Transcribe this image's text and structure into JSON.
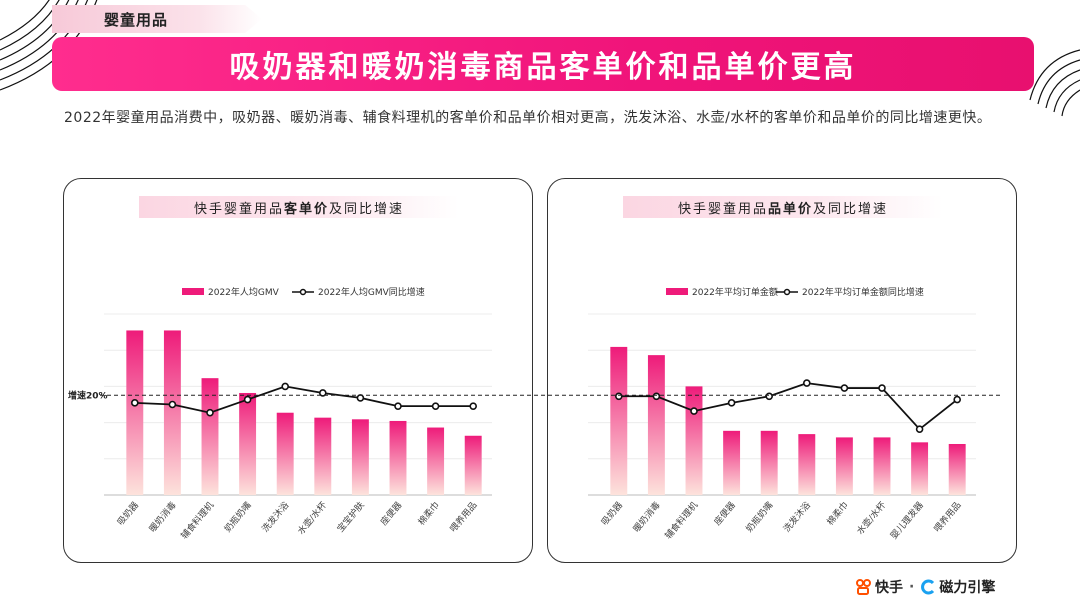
{
  "header": {
    "category": "婴童用品",
    "title": "吸奶器和暖奶消毒商品客单价和品单价更高",
    "summary": "2022年婴童用品消费中，吸奶器、暖奶消毒、辅食料理机的客单价和品单价相对更高，洗发沐浴、水壶/水杯的客单价和品单价的同比增速更快。"
  },
  "colors": {
    "accent": "#ee1b7a",
    "bar_top": "#ee1b7a",
    "bar_bottom": "#fde3dc",
    "line": "#111111"
  },
  "chart_data": [
    {
      "type": "bar",
      "title_pre": "快手婴童用品",
      "title_bold": "客单价",
      "title_post": "及同比增速",
      "categories": [
        "吸奶器",
        "暖奶消毒",
        "辅食料理机",
        "奶瓶奶嘴",
        "洗发沐浴",
        "水壶/水杯",
        "宝宝护肤",
        "座便器",
        "棉柔巾",
        "喂养用品"
      ],
      "series": [
        {
          "name": "2022年人均GMV",
          "kind": "bar",
          "values": [
            100,
            100,
            71,
            62,
            50,
            47,
            46,
            45,
            41,
            36
          ]
        },
        {
          "name": "2022年人均GMV同比增速",
          "kind": "line",
          "values": [
            16,
            15,
            10,
            18,
            26,
            22,
            19,
            14,
            14,
            14
          ]
        }
      ],
      "reference_label": "增速20%",
      "reference_value": 20,
      "ylim": [
        0,
        110
      ],
      "line_ylim": [
        -40,
        70
      ]
    },
    {
      "type": "bar",
      "title_pre": "快手婴童用品",
      "title_bold": "品单价",
      "title_post": "及同比增速",
      "categories": [
        "吸奶器",
        "暖奶消毒",
        "辅食料理机",
        "座便器",
        "奶瓶奶嘴",
        "洗发沐浴",
        "棉柔巾",
        "水壶/水杯",
        "婴儿理发器",
        "喂养用品"
      ],
      "series": [
        {
          "name": "2022年平均订单金额",
          "kind": "bar",
          "values": [
            90,
            85,
            66,
            39,
            39,
            37,
            35,
            35,
            32,
            31
          ]
        },
        {
          "name": "2022年平均订单金额同比增速",
          "kind": "line",
          "values": [
            20,
            20,
            11,
            16,
            20,
            28,
            25,
            25,
            0,
            18
          ]
        }
      ],
      "reference_value": 20,
      "ylim": [
        0,
        110
      ],
      "line_ylim": [
        -40,
        70
      ]
    }
  ],
  "footer": {
    "brand1": "快手",
    "separator": "·",
    "brand2": "磁力引擎"
  }
}
